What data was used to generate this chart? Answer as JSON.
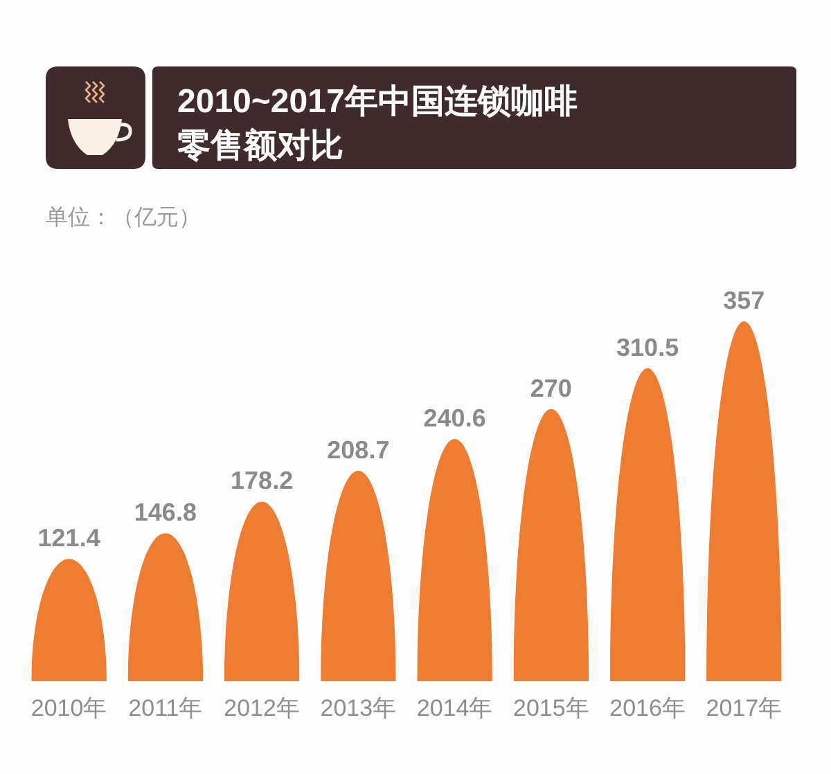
{
  "chart_data": {
    "type": "bar",
    "title": "2010~2017年中国连锁咖啡零售额对比",
    "subtitle": "单位：（亿元）",
    "categories": [
      "2010年",
      "2011年",
      "2012年",
      "2013年",
      "2014年",
      "2015年",
      "2016年",
      "2017年"
    ],
    "values": [
      121.4,
      146.8,
      178.2,
      208.7,
      240.6,
      270,
      310.5,
      357
    ],
    "color": "#ee7d31",
    "data_labels": true
  }
}
